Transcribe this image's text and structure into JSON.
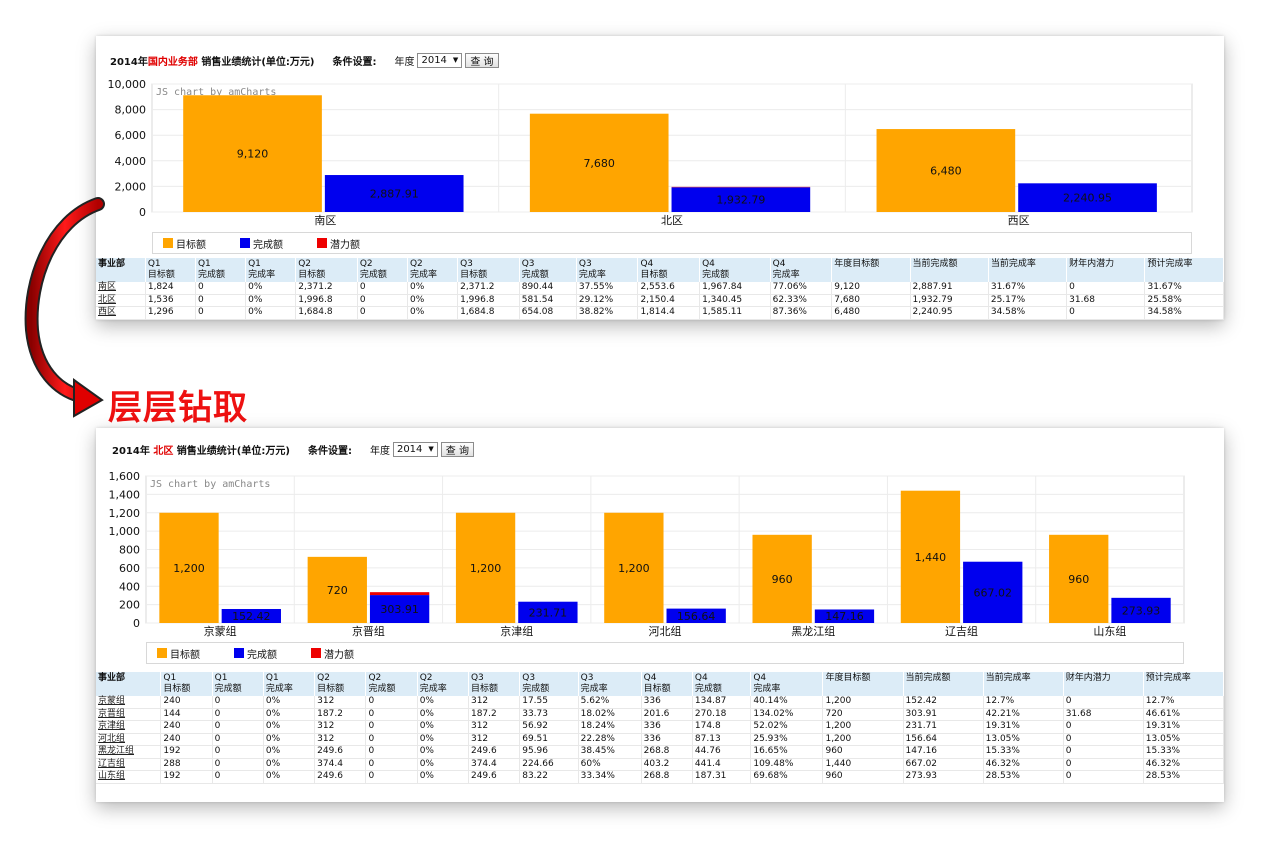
{
  "drill_label": "层层钻取",
  "top": {
    "header": {
      "title_prefix": "2014年",
      "region": "国内业务部",
      "title_suffix": " 销售业绩统计(单位:万元)",
      "condition_label": "条件设置:",
      "year_label": "年度",
      "year_value": "2014",
      "query_button": "查 询"
    },
    "legend": [
      "目标额",
      "完成额",
      "潜力额"
    ],
    "table": {
      "headers": [
        "事业部",
        "Q1\n目标额",
        "Q1\n完成额",
        "Q1\n完成率",
        "Q2\n目标额",
        "Q2\n完成额",
        "Q2\n完成率",
        "Q3\n目标额",
        "Q3\n完成额",
        "Q3\n完成率",
        "Q4\n目标额",
        "Q4\n完成额",
        "Q4\n完成率",
        "年度目标额",
        "当前完成额",
        "当前完成率",
        "财年内潜力",
        "预计完成率"
      ],
      "rows": [
        [
          "南区",
          "1,824",
          "0",
          "0%",
          "2,371.2",
          "0",
          "0%",
          "2,371.2",
          "890.44",
          "37.55%",
          "2,553.6",
          "1,967.84",
          "77.06%",
          "9,120",
          "2,887.91",
          "31.67%",
          "0",
          "31.67%"
        ],
        [
          "北区",
          "1,536",
          "0",
          "0%",
          "1,996.8",
          "0",
          "0%",
          "1,996.8",
          "581.54",
          "29.12%",
          "2,150.4",
          "1,340.45",
          "62.33%",
          "7,680",
          "1,932.79",
          "25.17%",
          "31.68",
          "25.58%"
        ],
        [
          "西区",
          "1,296",
          "0",
          "0%",
          "1,684.8",
          "0",
          "0%",
          "1,684.8",
          "654.08",
          "38.82%",
          "1,814.4",
          "1,585.11",
          "87.36%",
          "6,480",
          "2,240.95",
          "34.58%",
          "0",
          "34.58%"
        ]
      ]
    }
  },
  "bottom": {
    "header": {
      "title_prefix": "2014年 ",
      "region": "北区",
      "title_suffix": " 销售业绩统计(单位:万元)",
      "condition_label": "条件设置:",
      "year_label": "年度",
      "year_value": "2014",
      "query_button": "查 询"
    },
    "legend": [
      "目标额",
      "完成额",
      "潜力额"
    ],
    "table": {
      "headers": [
        "事业部",
        "Q1\n目标额",
        "Q1\n完成额",
        "Q1\n完成率",
        "Q2\n目标额",
        "Q2\n完成额",
        "Q2\n完成率",
        "Q3\n目标额",
        "Q3\n完成额",
        "Q3\n完成率",
        "Q4\n目标额",
        "Q4\n完成额",
        "Q4\n完成率",
        "年度目标额",
        "当前完成额",
        "当前完成率",
        "财年内潜力",
        "预计完成率"
      ],
      "rows": [
        [
          "京蒙组",
          "240",
          "0",
          "0%",
          "312",
          "0",
          "0%",
          "312",
          "17.55",
          "5.62%",
          "336",
          "134.87",
          "40.14%",
          "1,200",
          "152.42",
          "12.7%",
          "0",
          "12.7%"
        ],
        [
          "京晋组",
          "144",
          "0",
          "0%",
          "187.2",
          "0",
          "0%",
          "187.2",
          "33.73",
          "18.02%",
          "201.6",
          "270.18",
          "134.02%",
          "720",
          "303.91",
          "42.21%",
          "31.68",
          "46.61%"
        ],
        [
          "京津组",
          "240",
          "0",
          "0%",
          "312",
          "0",
          "0%",
          "312",
          "56.92",
          "18.24%",
          "336",
          "174.8",
          "52.02%",
          "1,200",
          "231.71",
          "19.31%",
          "0",
          "19.31%"
        ],
        [
          "河北组",
          "240",
          "0",
          "0%",
          "312",
          "0",
          "0%",
          "312",
          "69.51",
          "22.28%",
          "336",
          "87.13",
          "25.93%",
          "1,200",
          "156.64",
          "13.05%",
          "0",
          "13.05%"
        ],
        [
          "黑龙江组",
          "192",
          "0",
          "0%",
          "249.6",
          "0",
          "0%",
          "249.6",
          "95.96",
          "38.45%",
          "268.8",
          "44.76",
          "16.65%",
          "960",
          "147.16",
          "15.33%",
          "0",
          "15.33%"
        ],
        [
          "辽吉组",
          "288",
          "0",
          "0%",
          "374.4",
          "0",
          "0%",
          "374.4",
          "224.66",
          "60%",
          "403.2",
          "441.4",
          "109.48%",
          "1,440",
          "667.02",
          "46.32%",
          "0",
          "46.32%"
        ],
        [
          "山东组",
          "192",
          "0",
          "0%",
          "249.6",
          "0",
          "0%",
          "249.6",
          "83.22",
          "33.34%",
          "268.8",
          "187.31",
          "69.68%",
          "960",
          "273.93",
          "28.53%",
          "0",
          "28.53%"
        ]
      ]
    }
  },
  "colors": {
    "target": "#ffa500",
    "done": "#0000ee",
    "potential": "#ee0000",
    "drill": "#ee1111"
  },
  "chart_data": [
    {
      "type": "bar",
      "watermark": "JS chart by amCharts",
      "categories": [
        "南区",
        "北区",
        "西区"
      ],
      "series": [
        {
          "name": "目标额",
          "values": [
            9120,
            7680,
            6480
          ],
          "labels": [
            "9,120",
            "7,680",
            "6,480"
          ]
        },
        {
          "name": "完成额",
          "values": [
            2887.91,
            1932.79,
            2240.95
          ],
          "labels": [
            "2,887.91",
            "1,932.79",
            "2,240.95"
          ]
        },
        {
          "name": "潜力额",
          "values": [
            0,
            31.68,
            0
          ]
        }
      ],
      "ylim": [
        0,
        10000
      ],
      "yticks": [
        "0",
        "2,000",
        "4,000",
        "6,000",
        "8,000",
        "10,000"
      ],
      "ytick_values": [
        0,
        2000,
        4000,
        6000,
        8000,
        10000
      ],
      "grid": true,
      "legend": "bottom-left"
    },
    {
      "type": "bar",
      "watermark": "JS chart by amCharts",
      "categories": [
        "京蒙组",
        "京晋组",
        "京津组",
        "河北组",
        "黑龙江组",
        "辽吉组",
        "山东组"
      ],
      "series": [
        {
          "name": "目标额",
          "values": [
            1200,
            720,
            1200,
            1200,
            960,
            1440,
            960
          ],
          "labels": [
            "1,200",
            "720",
            "1,200",
            "1,200",
            "960",
            "1,440",
            "960"
          ]
        },
        {
          "name": "完成额",
          "values": [
            152.42,
            303.91,
            231.71,
            156.64,
            147.16,
            667.02,
            273.93
          ],
          "labels": [
            "152.42",
            "303.91",
            "231.71",
            "156.64",
            "147.16",
            "667.02",
            "273.93"
          ]
        },
        {
          "name": "潜力额",
          "values": [
            0,
            31.68,
            0,
            0,
            0,
            0,
            0
          ]
        }
      ],
      "ylim": [
        0,
        1600
      ],
      "yticks": [
        "0",
        "200",
        "400",
        "600",
        "800",
        "1,000",
        "1,200",
        "1,400",
        "1,600"
      ],
      "ytick_values": [
        0,
        200,
        400,
        600,
        800,
        1000,
        1200,
        1400,
        1600
      ],
      "grid": true,
      "legend": "bottom-left"
    }
  ]
}
